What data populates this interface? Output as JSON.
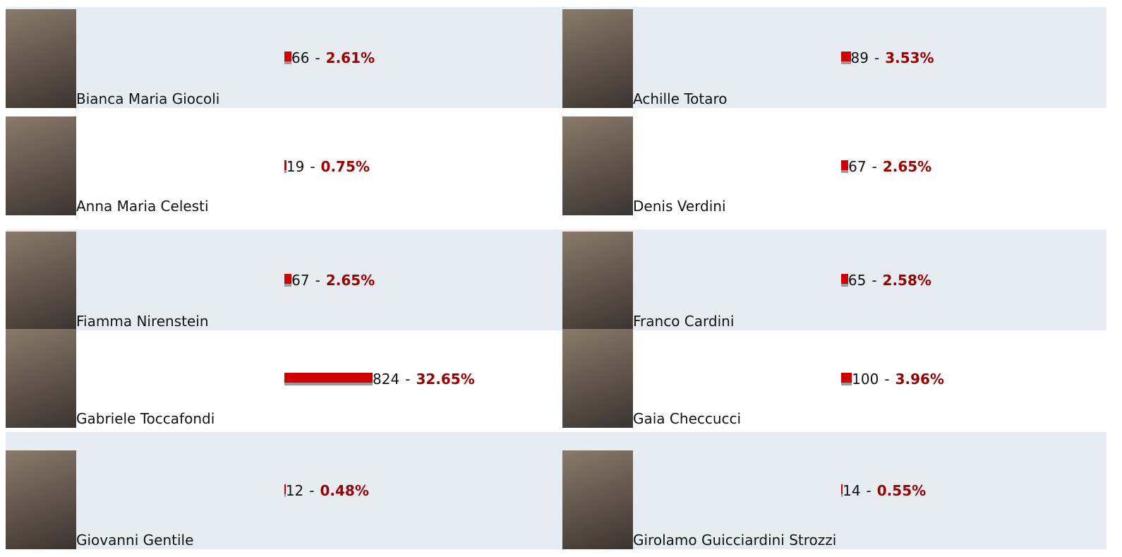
{
  "separator": "-",
  "candidates": [
    {
      "name": "Bianca Maria Giocoli",
      "votes": 66,
      "percent": 2.61,
      "percent_label": "2.61%"
    },
    {
      "name": "Achille Totaro",
      "votes": 89,
      "percent": 3.53,
      "percent_label": "3.53%"
    },
    {
      "name": "Anna Maria Celesti",
      "votes": 19,
      "percent": 0.75,
      "percent_label": "0.75%"
    },
    {
      "name": "Denis Verdini",
      "votes": 67,
      "percent": 2.65,
      "percent_label": "2.65%"
    },
    {
      "name": "Fiamma Nirenstein",
      "votes": 67,
      "percent": 2.65,
      "percent_label": "2.65%"
    },
    {
      "name": "Franco Cardini",
      "votes": 65,
      "percent": 2.58,
      "percent_label": "2.58%"
    },
    {
      "name": "Gabriele Toccafondi",
      "votes": 824,
      "percent": 32.65,
      "percent_label": "32.65%"
    },
    {
      "name": "Gaia Checcucci",
      "votes": 100,
      "percent": 3.96,
      "percent_label": "3.96%"
    },
    {
      "name": "Giovanni Gentile",
      "votes": 12,
      "percent": 0.48,
      "percent_label": "0.48%"
    },
    {
      "name": "Girolamo Guicciardini Strozzi",
      "votes": 14,
      "percent": 0.55,
      "percent_label": "0.55%"
    }
  ]
}
